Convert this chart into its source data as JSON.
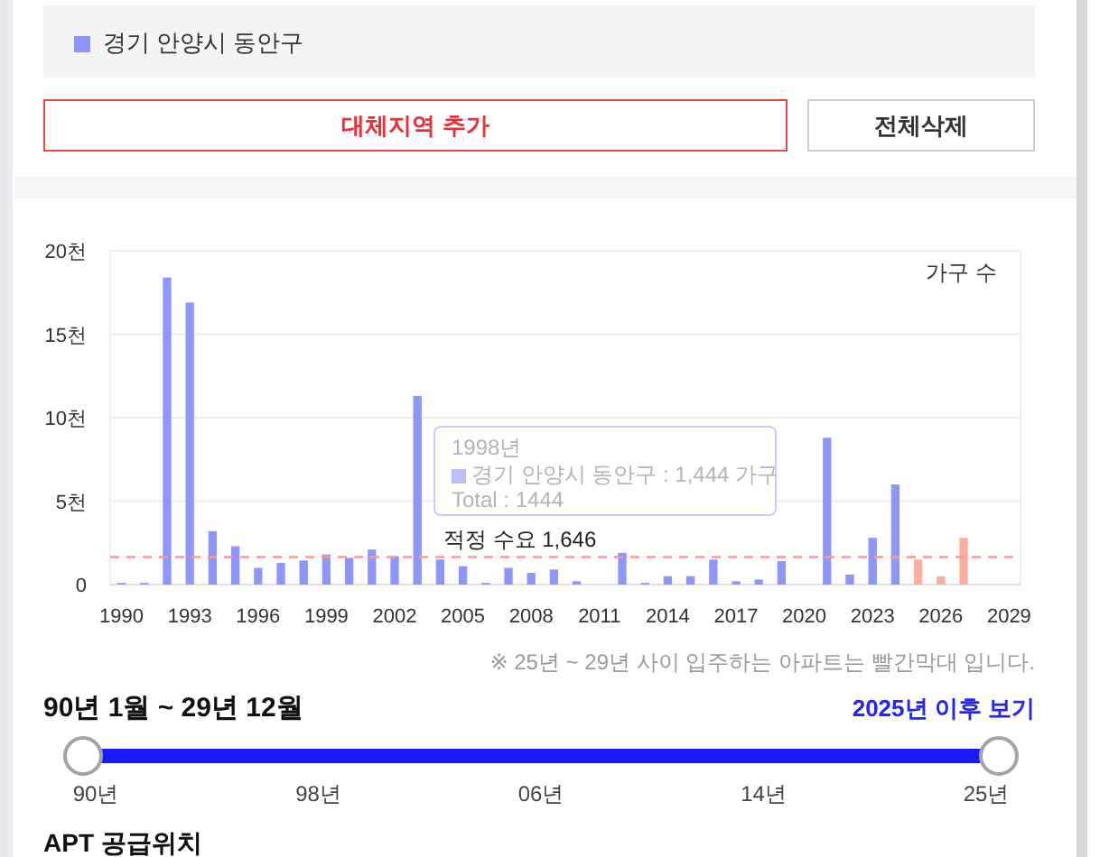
{
  "chart_data": {
    "type": "bar",
    "ylabel": "가구 수",
    "categories": [
      "1990",
      null,
      null,
      "1993",
      null,
      null,
      "1996",
      null,
      null,
      "1999",
      null,
      null,
      "2002",
      null,
      null,
      "2005",
      null,
      null,
      "2008",
      null,
      null,
      "2011",
      null,
      null,
      "2014",
      null,
      null,
      "2017",
      null,
      null,
      "2020",
      null,
      null,
      "2023",
      null,
      null,
      "2026",
      null,
      null,
      "2029"
    ],
    "series": [
      {
        "name": "경기 안양시 동안구",
        "color": "#8d96fa",
        "colors": [
          "#8d96fa",
          "#8d96fa",
          "#8d96fa",
          "#8d96fa",
          "#8d96fa",
          "#8d96fa",
          "#8d96fa",
          "#8d96fa",
          "#8d96fa",
          "#8d96fa",
          "#8d96fa",
          "#8d96fa",
          "#8d96fa",
          "#8d96fa",
          "#8d96fa",
          "#8d96fa",
          "#8d96fa",
          "#8d96fa",
          "#8d96fa",
          "#8d96fa",
          "#8d96fa",
          null,
          "#8d96fa",
          "#8d96fa",
          "#8d96fa",
          "#8d96fa",
          "#8d96fa",
          "#8d96fa",
          "#8d96fa",
          "#8d96fa",
          null,
          "#8d96fa",
          "#8d96fa",
          "#8d96fa",
          "#8d96fa",
          "#ffae9e",
          "#ffae9e",
          "#ffae9e",
          null,
          null
        ],
        "values": [
          0.1,
          0.1,
          18.4,
          16.9,
          3.2,
          2.3,
          1.0,
          1.3,
          1.444,
          1.8,
          1.6,
          2.1,
          1.7,
          11.3,
          1.5,
          1.1,
          0.1,
          1.0,
          0.7,
          0.9,
          0.2,
          null,
          1.9,
          0.1,
          0.5,
          0.5,
          1.5,
          0.2,
          0.3,
          1.4,
          null,
          8.8,
          0.6,
          2.8,
          6.0,
          1.5,
          0.5,
          2.8,
          null,
          null
        ]
      }
    ],
    "ylim": [
      0,
      20
    ],
    "yticks": [
      0,
      {
        "value": 5,
        "label": "5천"
      },
      {
        "value": 10,
        "label": "10천"
      },
      {
        "value": 15,
        "label": "15천"
      },
      {
        "value": 20,
        "label": "20천"
      }
    ],
    "grid": "y",
    "legend": "top left",
    "ref_lines": [
      {
        "axis": "y",
        "value": 1.646,
        "label": "적정 수요 1,646",
        "color": "#f59a9a",
        "line_style": "dashed"
      }
    ],
    "annotations": [
      "1998년",
      "경기 안양시 동안구 : 1,444 가구",
      "Total : 1444",
      "대체지역 추가",
      "전체삭제",
      "※ 25년 ~ 29년 사이 입주하는 아파트는 빨간막대 입니다.",
      "90년 1월 ~ 29년 12월",
      "2025년 이후 보기",
      "90년",
      "98년",
      "06년",
      "14년",
      "25년",
      "APT 공급위치"
    ]
  }
}
